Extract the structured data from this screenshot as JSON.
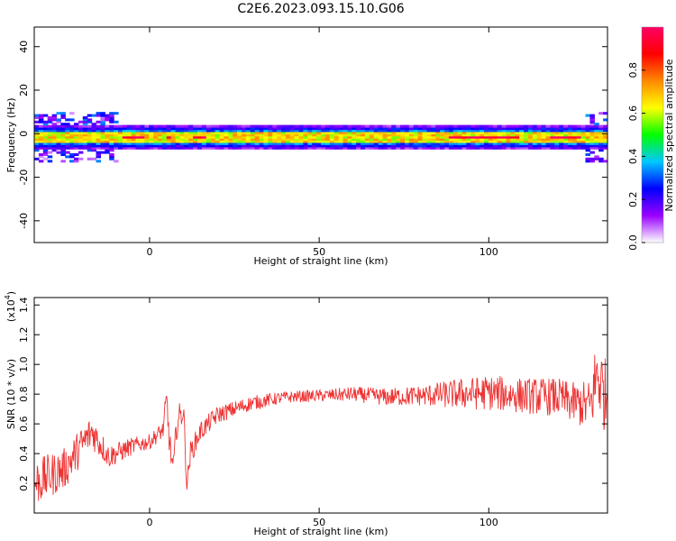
{
  "title": "C2E6.2023.093.15.10.G06",
  "chart_data": [
    {
      "type": "heatmap",
      "name": "spectrogram",
      "xlabel": "Height of straight line (km)",
      "ylabel": "Frequency (Hz)",
      "xlim": [
        -34,
        135
      ],
      "ylim": [
        -50,
        49
      ],
      "xticks": [
        0,
        50,
        100
      ],
      "yticks": [
        -40,
        -20,
        0,
        20,
        40
      ],
      "band_center_hz": -1.5,
      "band_core_halfwidth_hz": 2,
      "band_halo_halfwidth_hz": 5,
      "hot_segments_km": [
        [
          -8,
          -2
        ],
        [
          4,
          6
        ],
        [
          12,
          16
        ],
        [
          88,
          108
        ],
        [
          118,
          126
        ]
      ],
      "colorbar": {
        "label": "Normalized spectral amplitude",
        "range": [
          0.0,
          1.0
        ],
        "ticks": [
          0.0,
          0.2,
          0.4,
          0.6,
          0.8
        ],
        "tick_labels": [
          "0.0",
          "0.2",
          "0.4",
          "0.6",
          "0.8"
        ],
        "colors": [
          "#ffffff",
          "#9900ff",
          "#0000ff",
          "#00c8ff",
          "#00ff00",
          "#ffff00",
          "#ff8800",
          "#ff0000",
          "#ff0066"
        ]
      }
    },
    {
      "type": "line",
      "name": "snr",
      "xlabel": "Height of straight line (km)",
      "ylabel": "SNR (10 * v/v)",
      "yscale_label": "(x10",
      "yscale_exp": "4",
      "yscale_close": ")",
      "xlim": [
        -34,
        135
      ],
      "ylim": [
        0.0,
        1.45
      ],
      "xticks": [
        0,
        50,
        100
      ],
      "yticks": [
        0.2,
        0.4,
        0.6,
        0.8,
        1.0,
        1.2,
        1.4
      ],
      "ytick_labels": [
        "0.2",
        "0.4",
        "0.6",
        "0.8",
        "1.0",
        "1.2",
        "1.4"
      ],
      "color": "#ee3333",
      "x": [
        -34,
        -25,
        -17,
        -12,
        -5,
        0,
        4,
        5,
        6,
        7,
        8,
        10,
        11,
        12,
        15,
        20,
        30,
        40,
        50,
        60,
        70,
        80,
        90,
        100,
        110,
        120,
        125,
        130,
        132,
        134
      ],
      "y": [
        0.2,
        0.3,
        0.55,
        0.38,
        0.45,
        0.48,
        0.56,
        0.75,
        0.45,
        0.28,
        0.6,
        0.7,
        0.18,
        0.4,
        0.55,
        0.66,
        0.74,
        0.78,
        0.79,
        0.8,
        0.78,
        0.79,
        0.8,
        0.81,
        0.79,
        0.78,
        0.74,
        0.72,
        0.95,
        0.8
      ],
      "noise_amplitude": [
        0.16,
        0.14,
        0.12,
        0.08,
        0.06,
        0.05,
        0.06,
        0.12,
        0.1,
        0.1,
        0.1,
        0.1,
        0.06,
        0.08,
        0.07,
        0.06,
        0.05,
        0.04,
        0.04,
        0.05,
        0.06,
        0.07,
        0.1,
        0.12,
        0.12,
        0.13,
        0.14,
        0.18,
        0.3,
        0.25
      ]
    }
  ]
}
